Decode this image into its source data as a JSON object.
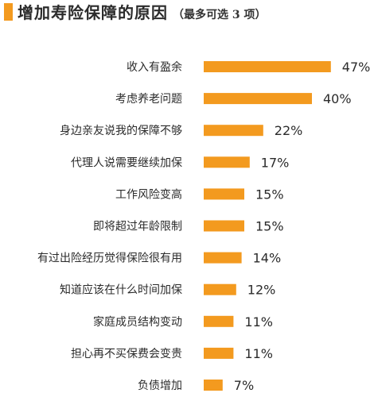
{
  "colors": {
    "accent": "#F39A1F",
    "bar": "#F39A1F",
    "text": "#2b2b2b"
  },
  "chart_data": {
    "type": "bar",
    "orientation": "horizontal",
    "title": "增加寿险保障的原因",
    "subtitle": "（最多可选 3 项）",
    "categories": [
      "收入有盈余",
      "考虑养老问题",
      "身边亲友说我的保障不够",
      "代理人说需要继续加保",
      "工作风险变高",
      "即将超过年龄限制",
      "有过出险经历觉得保险很有用",
      "知道应该在什么时间加保",
      "家庭成员结构变动",
      "担心再不买保费会变贵",
      "负债增加"
    ],
    "values": [
      47,
      40,
      22,
      17,
      15,
      15,
      14,
      12,
      11,
      11,
      7
    ],
    "value_labels": [
      "47%",
      "40%",
      "22%",
      "17%",
      "15%",
      "15%",
      "14%",
      "12%",
      "11%",
      "11%",
      "7%"
    ],
    "unit": "%",
    "grid": false,
    "legend": "none"
  }
}
